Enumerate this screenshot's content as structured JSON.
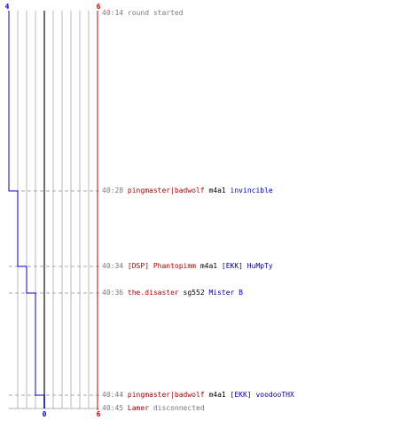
{
  "axis": {
    "top_left": "4",
    "top_right": "6",
    "bottom_zero": "0",
    "bottom_right": "6"
  },
  "chart_data": {
    "type": "line",
    "series": [
      {
        "values": [
          4,
          3,
          2,
          1,
          0
        ]
      }
    ],
    "events_time": [
      "40:14",
      "40:28",
      "40:34",
      "40:36",
      "40:44"
    ]
  },
  "log": [
    {
      "time": "40:14",
      "parts": [
        {
          "text": "round started",
          "color": "grey"
        }
      ]
    },
    {
      "time": "40:28",
      "parts": [
        {
          "text": "pingmaster|badwolf",
          "color": "red"
        },
        {
          "text": "m4a1",
          "color": "black"
        },
        {
          "text": "invincible",
          "color": "blue"
        }
      ]
    },
    {
      "time": "40:34",
      "parts": [
        {
          "text": "[DSP] Phantopimm",
          "color": "red"
        },
        {
          "text": "m4a1",
          "color": "black"
        },
        {
          "text": "[EKK] HuMpTy",
          "color": "blue"
        }
      ]
    },
    {
      "time": "40:36",
      "parts": [
        {
          "text": "the.disaster",
          "color": "red"
        },
        {
          "text": "sg552",
          "color": "black"
        },
        {
          "text": "Mister B",
          "color": "blue"
        }
      ]
    },
    {
      "time": "40:44",
      "parts": [
        {
          "text": "pingmaster|badwolf",
          "color": "red"
        },
        {
          "text": "m4a1",
          "color": "black"
        },
        {
          "text": "[EKK] voodooTHX",
          "color": "blue"
        }
      ]
    },
    {
      "time": "40:45",
      "parts": [
        {
          "text": "Lamer",
          "color": "red"
        },
        {
          "text": "disconnected",
          "color": "grey"
        }
      ]
    }
  ]
}
